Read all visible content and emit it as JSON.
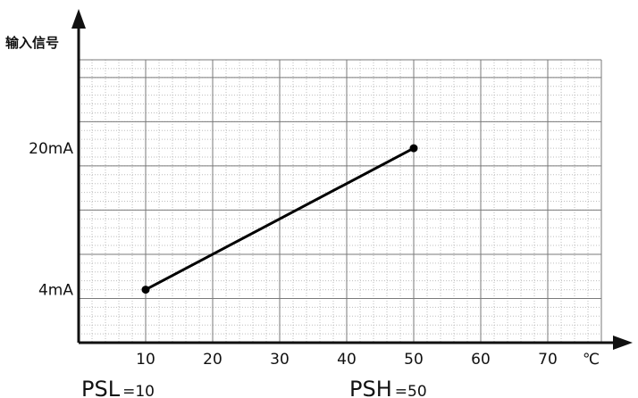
{
  "chart_data": {
    "type": "line",
    "title": "",
    "ylabel": "输入信号",
    "xlabel": "",
    "x_unit": "℃",
    "x_ticks": [
      10,
      20,
      30,
      40,
      50,
      60,
      70
    ],
    "xlim": [
      0,
      78
    ],
    "y_tick_labels": [
      "4mA",
      "20mA"
    ],
    "y_ticks": [
      4,
      20
    ],
    "ylim": [
      -2,
      30
    ],
    "grid": true,
    "series": [
      {
        "values": [
          {
            "x": 10,
            "y": 4
          },
          {
            "x": 50,
            "y": 20
          }
        ]
      }
    ],
    "annotations": [
      {
        "name": "PSL",
        "value": "=10",
        "x": 10
      },
      {
        "name": "PSH",
        "value": "=50",
        "x": 50
      }
    ]
  }
}
